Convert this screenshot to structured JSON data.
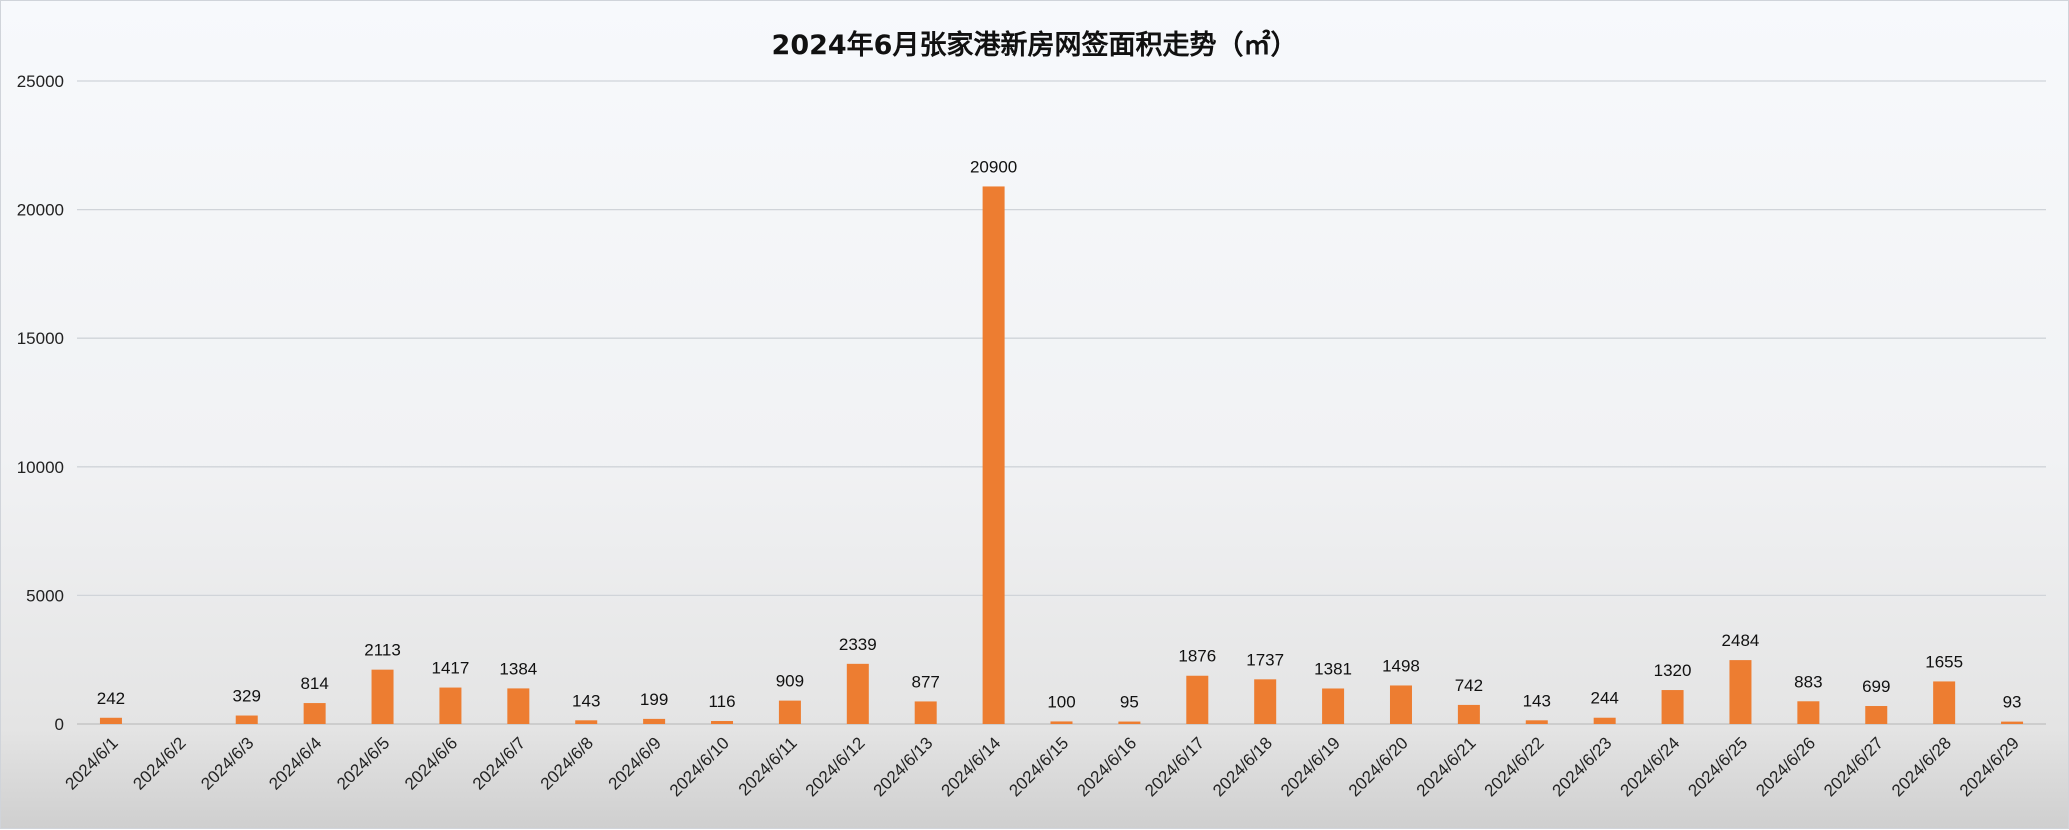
{
  "chart_data": {
    "type": "bar",
    "title": "2024年6月张家港新房网签面积走势（㎡）",
    "xlabel": "",
    "ylabel": "",
    "ylim": [
      0,
      25000
    ],
    "yticks": [
      0,
      5000,
      10000,
      15000,
      20000,
      25000
    ],
    "grid": true,
    "legend": "none",
    "bar_color": "#ed7d31",
    "categories": [
      "2024/6/1",
      "2024/6/2",
      "2024/6/3",
      "2024/6/4",
      "2024/6/5",
      "2024/6/6",
      "2024/6/7",
      "2024/6/8",
      "2024/6/9",
      "2024/6/10",
      "2024/6/11",
      "2024/6/12",
      "2024/6/13",
      "2024/6/14",
      "2024/6/15",
      "2024/6/16",
      "2024/6/17",
      "2024/6/18",
      "2024/6/19",
      "2024/6/20",
      "2024/6/21",
      "2024/6/22",
      "2024/6/23",
      "2024/6/24",
      "2024/6/25",
      "2024/6/26",
      "2024/6/27",
      "2024/6/28",
      "2024/6/29"
    ],
    "values": [
      242,
      null,
      329,
      814,
      2113,
      1417,
      1384,
      143,
      199,
      116,
      909,
      2339,
      877,
      20900,
      100,
      95,
      1876,
      1737,
      1381,
      1498,
      742,
      143,
      244,
      1320,
      2484,
      883,
      699,
      1655,
      93
    ]
  }
}
